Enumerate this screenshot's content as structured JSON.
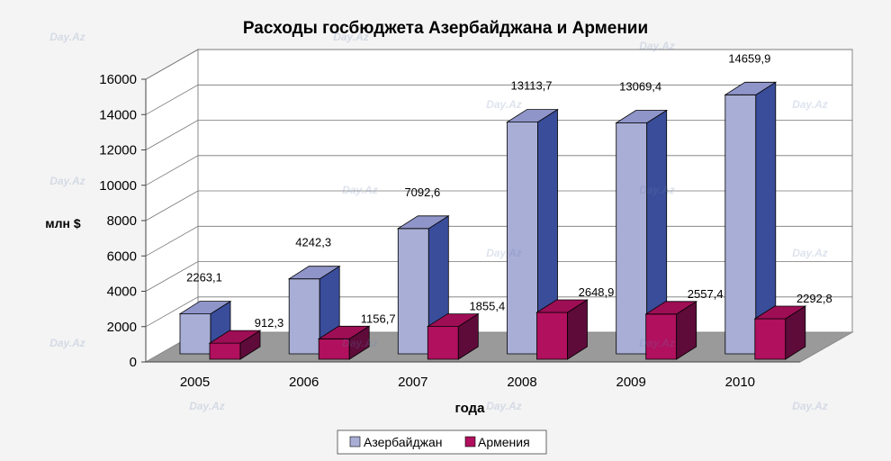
{
  "chart_data": {
    "type": "bar",
    "title": "Расходы госбюджета Азербайджана и Армении",
    "xlabel": "года",
    "ylabel": "млн $",
    "categories": [
      "2005",
      "2006",
      "2007",
      "2008",
      "2009",
      "2010"
    ],
    "series": [
      {
        "name": "Азербайджан",
        "values": [
          2263.1,
          4242.3,
          7092.6,
          13113.7,
          13069.4,
          14659.9
        ],
        "labels": [
          "2263,1",
          "4242,3",
          "7092,6",
          "13113,7",
          "13069,4",
          "14659,9"
        ],
        "color": "#a9aed6",
        "side_color": "#3a4d9a",
        "top_color": "#8f95c9"
      },
      {
        "name": "Армения",
        "values": [
          912.3,
          1156.7,
          1855.4,
          2648.9,
          2557.4,
          2292.8
        ],
        "labels": [
          "912,3",
          "1156,7",
          "1855,4",
          "2648,9",
          "2557,4",
          "2292,8"
        ],
        "color": "#b0105e",
        "side_color": "#5e0b3a",
        "top_color": "#9e0e55"
      }
    ],
    "yticks": [
      "0",
      "2000",
      "4000",
      "6000",
      "8000",
      "10000",
      "12000",
      "14000",
      "16000"
    ],
    "ylim": [
      0,
      16000
    ],
    "grid": true,
    "legend": "bottom",
    "watermark": "Day.Az"
  }
}
